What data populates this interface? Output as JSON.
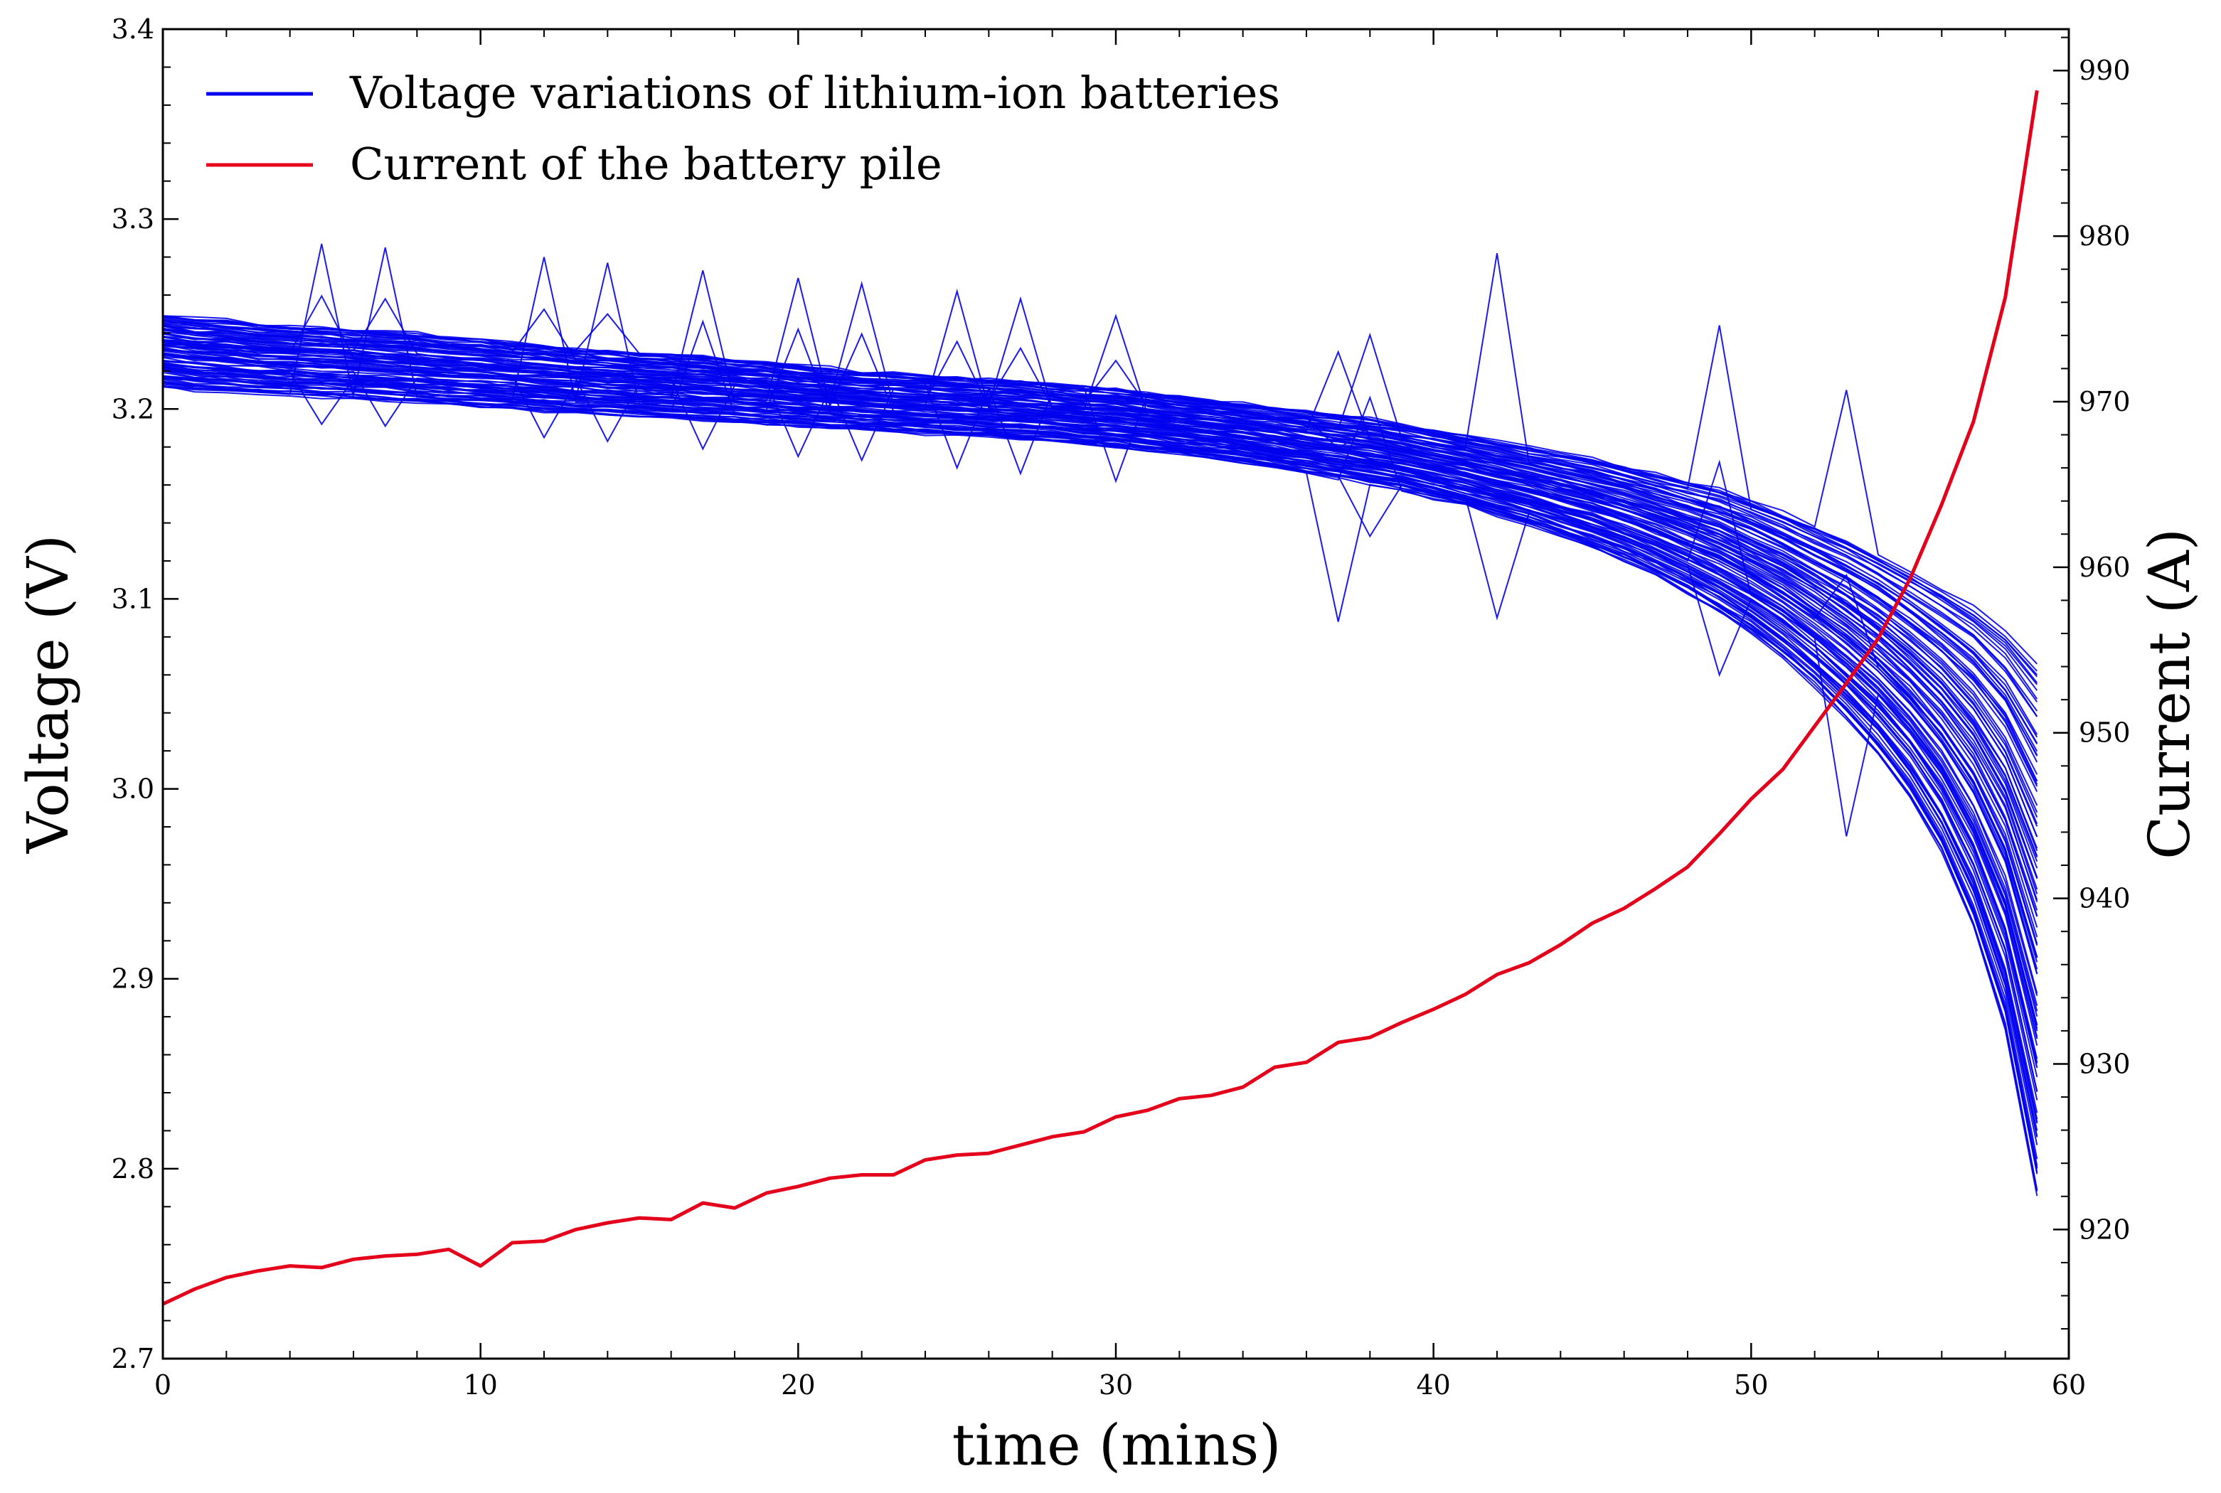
{
  "chart_data": {
    "type": "line",
    "title": "",
    "xlabel": "time (mins)",
    "ylabel_left": "Voltage (V)",
    "ylabel_right": "Current (A)",
    "xlim": [
      0,
      60
    ],
    "ylim_left": [
      2.7,
      3.4
    ],
    "ylim_right": [
      912.2,
      992.5
    ],
    "x_ticks": [
      0,
      10,
      20,
      30,
      40,
      50,
      60
    ],
    "x_tick_labels": [
      "0",
      "10",
      "20",
      "30",
      "40",
      "50",
      "60"
    ],
    "y_left_ticks": [
      2.7,
      2.8,
      2.9,
      3.0,
      3.1,
      3.2,
      3.3,
      3.4
    ],
    "y_left_tick_labels": [
      "2.7",
      "2.8",
      "2.9",
      "3.0",
      "3.1",
      "3.2",
      "3.3",
      "3.4"
    ],
    "y_right_ticks": [
      920,
      930,
      940,
      950,
      960,
      970,
      980,
      990
    ],
    "y_right_tick_labels": [
      "920",
      "930",
      "940",
      "950",
      "960",
      "970",
      "980",
      "990"
    ],
    "legend_position": "top-left",
    "grid": false,
    "legend": [
      {
        "label": "Voltage variations of lithium-ion batteries",
        "color": "#0000ee"
      },
      {
        "label": "Current of the battery pile",
        "color": "#e4001b"
      }
    ],
    "voltage_series": {
      "name": "Voltage variations of lithium-ion batteries",
      "color": "#0000ee",
      "cell_count": 100,
      "x": [
        0,
        1,
        2,
        3,
        4,
        5,
        6,
        7,
        8,
        9,
        10,
        11,
        12,
        13,
        14,
        15,
        16,
        17,
        18,
        19,
        20,
        21,
        22,
        23,
        24,
        25,
        26,
        27,
        28,
        29,
        30,
        31,
        32,
        33,
        34,
        35,
        36,
        37,
        38,
        39,
        40,
        41,
        42,
        43,
        44,
        45,
        46,
        47,
        48,
        49,
        50,
        51,
        52,
        53,
        54,
        55,
        56,
        57,
        58,
        59
      ],
      "envelope_upper": [
        3.25,
        3.248,
        3.247,
        3.245,
        3.244,
        3.243,
        3.242,
        3.241,
        3.24,
        3.238,
        3.237,
        3.235,
        3.234,
        3.232,
        3.231,
        3.23,
        3.229,
        3.228,
        3.226,
        3.225,
        3.223,
        3.222,
        3.22,
        3.219,
        3.218,
        3.217,
        3.216,
        3.215,
        3.213,
        3.212,
        3.211,
        3.209,
        3.207,
        3.205,
        3.203,
        3.201,
        3.199,
        3.197,
        3.195,
        3.192,
        3.189,
        3.186,
        3.183,
        3.18,
        3.177,
        3.174,
        3.17,
        3.166,
        3.162,
        3.158,
        3.152,
        3.146,
        3.139,
        3.132,
        3.124,
        3.115,
        3.106,
        3.097,
        3.085,
        3.067
      ],
      "envelope_lower": [
        3.212,
        3.21,
        3.209,
        3.208,
        3.207,
        3.206,
        3.205,
        3.204,
        3.203,
        3.202,
        3.201,
        3.2,
        3.199,
        3.198,
        3.197,
        3.196,
        3.195,
        3.194,
        3.193,
        3.192,
        3.191,
        3.19,
        3.189,
        3.188,
        3.187,
        3.186,
        3.185,
        3.184,
        3.183,
        3.181,
        3.18,
        3.178,
        3.176,
        3.174,
        3.172,
        3.169,
        3.166,
        3.163,
        3.16,
        3.157,
        3.153,
        3.149,
        3.144,
        3.139,
        3.133,
        3.127,
        3.12,
        3.112,
        3.103,
        3.093,
        3.082,
        3.069,
        3.054,
        3.037,
        3.018,
        2.995,
        2.966,
        2.927,
        2.873,
        2.785
      ],
      "spikes": [
        {
          "x": 5,
          "high": 3.287,
          "low": 3.192
        },
        {
          "x": 7,
          "high": 3.285,
          "low": 3.191
        },
        {
          "x": 12,
          "high": 3.28,
          "low": 3.185
        },
        {
          "x": 14,
          "high": 3.277,
          "low": 3.183
        },
        {
          "x": 17,
          "high": 3.273,
          "low": 3.179
        },
        {
          "x": 20,
          "high": 3.269,
          "low": 3.175
        },
        {
          "x": 22,
          "high": 3.266,
          "low": 3.173
        },
        {
          "x": 25,
          "high": 3.262,
          "low": 3.169
        },
        {
          "x": 27,
          "high": 3.258,
          "low": 3.166
        },
        {
          "x": 30,
          "high": 3.249,
          "low": 3.162
        },
        {
          "x": 37,
          "high": 3.23,
          "low": 3.088
        },
        {
          "x": 38,
          "high": 3.239,
          "low": 3.133
        },
        {
          "x": 42,
          "high": 3.282,
          "low": 3.09
        },
        {
          "x": 49,
          "high": 3.244,
          "low": 3.06
        },
        {
          "x": 53,
          "high": 3.21,
          "low": 2.975
        }
      ]
    },
    "current_series": {
      "name": "Current of the battery pile",
      "color": "#e4001b",
      "x": [
        0,
        1,
        2,
        3,
        4,
        5,
        6,
        7,
        8,
        9,
        10,
        11,
        12,
        13,
        14,
        15,
        16,
        17,
        18,
        19,
        20,
        21,
        22,
        23,
        24,
        25,
        26,
        27,
        28,
        29,
        30,
        31,
        32,
        33,
        34,
        35,
        36,
        37,
        38,
        39,
        40,
        41,
        42,
        43,
        44,
        45,
        46,
        47,
        48,
        49,
        50,
        51,
        52,
        53,
        54,
        55,
        56,
        57,
        58,
        59
      ],
      "values": [
        915.5,
        916.4,
        917.1,
        917.5,
        917.8,
        917.7,
        918.2,
        918.4,
        918.5,
        918.8,
        917.8,
        919.2,
        919.3,
        920.0,
        920.4,
        920.7,
        920.6,
        921.6,
        921.3,
        922.2,
        922.6,
        923.1,
        923.3,
        923.3,
        924.2,
        924.5,
        924.6,
        925.1,
        925.6,
        925.9,
        926.8,
        927.2,
        927.9,
        928.1,
        928.6,
        929.8,
        930.1,
        931.3,
        931.6,
        932.5,
        933.3,
        934.2,
        935.4,
        936.1,
        937.2,
        938.5,
        939.4,
        940.6,
        941.9,
        943.9,
        946.0,
        947.8,
        950.4,
        953.0,
        955.7,
        959.3,
        963.8,
        968.8,
        976.3,
        988.8
      ]
    }
  }
}
